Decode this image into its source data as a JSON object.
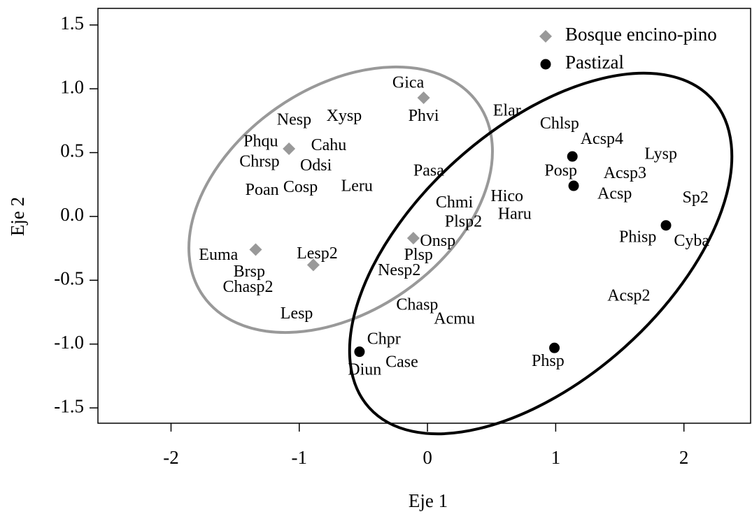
{
  "chart_data": {
    "type": "scatter",
    "xlabel": "Eje 1",
    "ylabel": "Eje 2",
    "xlim": [
      -2.57,
      2.52
    ],
    "ylim": [
      -1.62,
      1.63
    ],
    "xticks": [
      -2,
      -1,
      0,
      1,
      2
    ],
    "yticks": [
      {
        "value": -1.5,
        "label": "-1.5"
      },
      {
        "value": -1,
        "label": "-1.0"
      },
      {
        "value": -0.5,
        "label": "-0.5"
      },
      {
        "value": 0,
        "label": "0.0"
      },
      0.5,
      {
        "value": 1,
        "label": "1.0"
      },
      1.5
    ],
    "legend": "top right",
    "series": [
      {
        "name": "Bosque encino-pino",
        "color": "#999999",
        "marker": "diamond",
        "x": [
          -0.03,
          -1.08,
          -1.34,
          -0.89,
          -0.11
        ],
        "values": [
          0.93,
          0.53,
          -0.26,
          -0.38,
          -0.17
        ]
      },
      {
        "name": "Pastizal",
        "color": "#000000",
        "marker": "circle",
        "x": [
          1.13,
          1.14,
          1.86,
          0.99,
          -0.53
        ],
        "values": [
          0.47,
          0.24,
          -0.07,
          -1.03,
          -1.06
        ]
      }
    ],
    "annotations": [
      {
        "text": "Gica",
        "x": -0.15,
        "y": 1.04
      },
      {
        "text": "Phvi",
        "x": -0.03,
        "y": 0.78
      },
      {
        "text": "Elar",
        "x": 0.62,
        "y": 0.82
      },
      {
        "text": "Nesp",
        "x": -1.04,
        "y": 0.75
      },
      {
        "text": "Xysp",
        "x": -0.65,
        "y": 0.78
      },
      {
        "text": "Phqu",
        "x": -1.3,
        "y": 0.58
      },
      {
        "text": "Cahu",
        "x": -0.77,
        "y": 0.55
      },
      {
        "text": "Chrsp",
        "x": -1.31,
        "y": 0.42
      },
      {
        "text": "Odsi",
        "x": -0.87,
        "y": 0.39
      },
      {
        "text": "Pasa",
        "x": 0.01,
        "y": 0.35
      },
      {
        "text": "Poan",
        "x": -1.29,
        "y": 0.2
      },
      {
        "text": "Cosp",
        "x": -0.99,
        "y": 0.22
      },
      {
        "text": "Leru",
        "x": -0.55,
        "y": 0.23
      },
      {
        "text": "Chlsp",
        "x": 1.03,
        "y": 0.72
      },
      {
        "text": "Acsp4",
        "x": 1.36,
        "y": 0.6
      },
      {
        "text": "Lysp",
        "x": 1.82,
        "y": 0.48
      },
      {
        "text": "Posp",
        "x": 1.04,
        "y": 0.35
      },
      {
        "text": "Acsp3",
        "x": 1.54,
        "y": 0.33
      },
      {
        "text": "Acsp",
        "x": 1.46,
        "y": 0.17
      },
      {
        "text": "Sp2",
        "x": 2.09,
        "y": 0.14
      },
      {
        "text": "Hico",
        "x": 0.62,
        "y": 0.15
      },
      {
        "text": "Chmi",
        "x": 0.21,
        "y": 0.1
      },
      {
        "text": "Haru",
        "x": 0.68,
        "y": 0.01
      },
      {
        "text": "Plsp2",
        "x": 0.28,
        "y": -0.05
      },
      {
        "text": "Onsp",
        "x": 0.08,
        "y": -0.2
      },
      {
        "text": "Phisp",
        "x": 1.64,
        "y": -0.17
      },
      {
        "text": "Cyba",
        "x": 2.06,
        "y": -0.2
      },
      {
        "text": "Euma",
        "x": -1.63,
        "y": -0.31
      },
      {
        "text": "Lesp2",
        "x": -0.86,
        "y": -0.3
      },
      {
        "text": "Plsp",
        "x": -0.07,
        "y": -0.31
      },
      {
        "text": "Brsp",
        "x": -1.39,
        "y": -0.44
      },
      {
        "text": "Nesp2",
        "x": -0.22,
        "y": -0.43
      },
      {
        "text": "Chasp2",
        "x": -1.4,
        "y": -0.56
      },
      {
        "text": "Acsp2",
        "x": 1.57,
        "y": -0.63
      },
      {
        "text": "Chasp",
        "x": -0.08,
        "y": -0.7
      },
      {
        "text": "Lesp",
        "x": -1.02,
        "y": -0.77
      },
      {
        "text": "Acmu",
        "x": 0.21,
        "y": -0.81
      },
      {
        "text": "Chpr",
        "x": -0.34,
        "y": -0.97
      },
      {
        "text": "Case",
        "x": -0.2,
        "y": -1.15
      },
      {
        "text": "Phsp",
        "x": 0.94,
        "y": -1.14
      },
      {
        "text": "Diun",
        "x": -0.49,
        "y": -1.21
      }
    ]
  }
}
